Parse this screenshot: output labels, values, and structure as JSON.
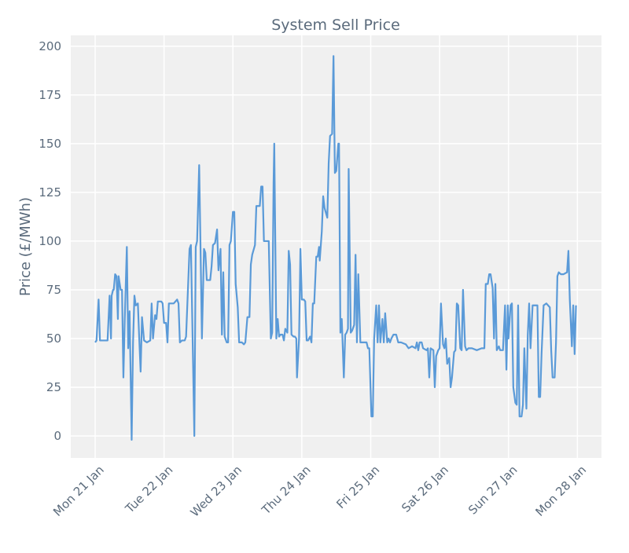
{
  "chart_data": {
    "type": "line",
    "title": "System Sell Price",
    "y_label": "Price (£/MWh)",
    "x": [
      0,
      0.02,
      0.05,
      0.07,
      0.16,
      0.18,
      0.21,
      0.23,
      0.24,
      0.26,
      0.27,
      0.29,
      0.31,
      0.33,
      0.34,
      0.37,
      0.39,
      0.41,
      0.43,
      0.46,
      0.48,
      0.5,
      0.53,
      0.55,
      0.57,
      0.59,
      0.62,
      0.64,
      0.66,
      0.68,
      0.71,
      0.75,
      0.8,
      0.82,
      0.84,
      0.87,
      0.89,
      0.91,
      0.96,
      0.98,
      1.0,
      1.03,
      1.05,
      1.07,
      1.14,
      1.19,
      1.21,
      1.23,
      1.26,
      1.3,
      1.32,
      1.35,
      1.37,
      1.39,
      1.42,
      1.44,
      1.46,
      1.48,
      1.51,
      1.53,
      1.55,
      1.58,
      1.6,
      1.62,
      1.67,
      1.69,
      1.71,
      1.74,
      1.77,
      1.79,
      1.82,
      1.84,
      1.86,
      1.88,
      1.91,
      1.93,
      1.95,
      1.97,
      2.0,
      2.02,
      2.04,
      2.07,
      2.09,
      2.13,
      2.16,
      2.18,
      2.21,
      2.24,
      2.26,
      2.28,
      2.32,
      2.34,
      2.39,
      2.41,
      2.43,
      2.45,
      2.52,
      2.55,
      2.57,
      2.59,
      2.6,
      2.63,
      2.65,
      2.67,
      2.69,
      2.72,
      2.74,
      2.76,
      2.79,
      2.81,
      2.83,
      2.85,
      2.88,
      2.9,
      2.92,
      2.93,
      2.96,
      2.98,
      3.0,
      3.03,
      3.05,
      3.07,
      3.09,
      3.12,
      3.14,
      3.16,
      3.18,
      3.21,
      3.23,
      3.25,
      3.26,
      3.29,
      3.31,
      3.33,
      3.37,
      3.39,
      3.41,
      3.44,
      3.46,
      3.48,
      3.5,
      3.53,
      3.54,
      3.56,
      3.58,
      3.61,
      3.63,
      3.65,
      3.67,
      3.68,
      3.71,
      3.73,
      3.76,
      3.78,
      3.8,
      3.82,
      3.85,
      3.89,
      3.94,
      3.96,
      3.98,
      4.01,
      4.03,
      4.05,
      4.08,
      4.1,
      4.12,
      4.14,
      4.17,
      4.19,
      4.21,
      4.24,
      4.26,
      4.28,
      4.3,
      4.33,
      4.37,
      4.4,
      4.44,
      4.51,
      4.55,
      4.6,
      4.65,
      4.67,
      4.69,
      4.71,
      4.74,
      4.76,
      4.81,
      4.83,
      4.85,
      4.87,
      4.91,
      4.93,
      4.95,
      4.98,
      5.0,
      5.02,
      5.05,
      5.07,
      5.09,
      5.11,
      5.14,
      5.16,
      5.18,
      5.21,
      5.23,
      5.25,
      5.27,
      5.3,
      5.32,
      5.34,
      5.37,
      5.39,
      5.42,
      5.47,
      5.54,
      5.61,
      5.65,
      5.67,
      5.7,
      5.72,
      5.74,
      5.77,
      5.79,
      5.81,
      5.83,
      5.86,
      5.88,
      5.92,
      5.95,
      5.97,
      5.99,
      6.0,
      6.03,
      6.05,
      6.07,
      6.1,
      6.12,
      6.14,
      6.16,
      6.19,
      6.21,
      6.23,
      6.26,
      6.28,
      6.3,
      6.32,
      6.35,
      6.39,
      6.42,
      6.44,
      6.46,
      6.48,
      6.51,
      6.55,
      6.6,
      6.62,
      6.64,
      6.67,
      6.69,
      6.71,
      6.73,
      6.76,
      6.8,
      6.85,
      6.87,
      6.89,
      6.92,
      6.94,
      6.96,
      6.98
    ],
    "series": [
      {
        "color": "#5a9ad8",
        "values": [
          48,
          49,
          70,
          49,
          49,
          49,
          72,
          50,
          72,
          75,
          75,
          83,
          82,
          60,
          82,
          75,
          75,
          30,
          60,
          97,
          45,
          64,
          -2,
          48,
          72,
          67,
          68,
          50,
          33,
          61,
          49,
          48,
          49,
          68,
          50,
          62,
          60,
          69,
          69,
          68,
          58,
          58,
          48,
          68,
          68,
          70,
          68,
          48,
          49,
          49,
          51,
          78,
          96,
          98,
          40,
          0,
          97,
          100,
          139,
          96,
          50,
          96,
          94,
          80,
          80,
          87,
          98,
          99,
          106,
          85,
          96,
          52,
          84,
          51,
          48,
          48,
          98,
          100,
          115,
          115,
          78,
          66,
          48,
          48,
          47,
          48,
          61,
          61,
          88,
          93,
          98,
          118,
          118,
          128,
          128,
          100,
          100,
          50,
          53,
          130,
          150,
          50,
          60,
          51,
          52,
          52,
          49,
          55,
          53,
          95,
          88,
          52,
          51,
          51,
          50,
          30,
          50,
          96,
          70,
          70,
          69,
          49,
          49,
          51,
          48,
          68,
          68,
          92,
          92,
          97,
          90,
          105,
          123,
          117,
          112,
          140,
          154,
          155,
          195,
          135,
          136,
          150,
          150,
          53,
          60,
          30,
          52,
          53,
          55,
          137,
          53,
          54,
          57,
          93,
          48,
          83,
          48,
          48,
          48,
          45,
          45,
          10,
          10,
          50,
          67,
          48,
          67,
          48,
          60,
          48,
          63,
          48,
          50,
          48,
          50,
          52,
          52,
          48,
          48,
          47,
          45,
          46,
          45,
          48,
          44,
          48,
          48,
          45,
          44,
          45,
          30,
          45,
          44,
          25,
          41,
          44,
          45,
          68,
          47,
          45,
          50,
          37,
          40,
          25,
          30,
          43,
          44,
          68,
          67,
          45,
          44,
          75,
          46,
          44,
          45,
          45,
          44,
          45,
          45,
          78,
          78,
          83,
          83,
          76,
          50,
          78,
          44,
          46,
          44,
          44,
          67,
          34,
          67,
          50,
          67,
          68,
          25,
          17,
          16,
          67,
          10,
          10,
          16,
          45,
          14,
          52,
          68,
          45,
          67,
          67,
          67,
          20,
          20,
          42,
          67,
          68,
          66,
          44,
          30,
          30,
          48,
          82,
          84,
          83,
          83,
          84,
          95,
          70,
          46,
          67,
          42,
          67
        ]
      }
    ],
    "xlim": [
      -0.354,
      7.35
    ],
    "xticks": [
      {
        "value": 0,
        "label": "Mon 21 Jan"
      },
      {
        "value": 1,
        "label": "Tue 22 Jan"
      },
      {
        "value": 2,
        "label": "Wed 23 Jan"
      },
      {
        "value": 3,
        "label": "Thu 24 Jan"
      },
      {
        "value": 4,
        "label": "Fri 25 Jan"
      },
      {
        "value": 5,
        "label": "Sat 26 Jan"
      },
      {
        "value": 6,
        "label": "Sun 27 Jan"
      },
      {
        "value": 7,
        "label": "Mon 28 Jan"
      }
    ],
    "ylim": [
      -11.3,
      205.6
    ],
    "yticks": [
      0,
      25,
      50,
      75,
      100,
      125,
      150,
      175,
      200
    ],
    "grid": true
  }
}
